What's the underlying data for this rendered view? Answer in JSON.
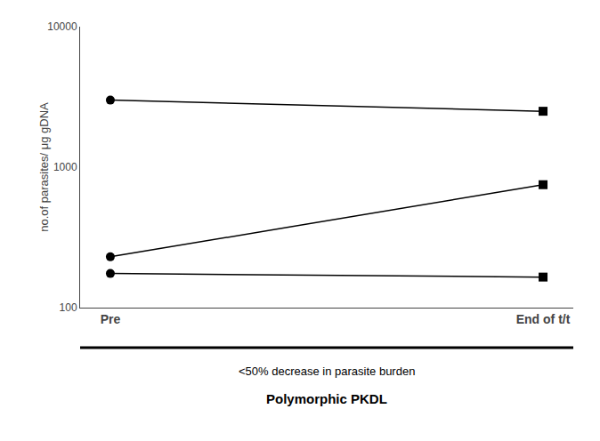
{
  "chart_data": {
    "type": "line",
    "categories": [
      "Pre",
      "End of t/t"
    ],
    "series": [
      {
        "values": [
          3000,
          2500
        ]
      },
      {
        "values": [
          230,
          750
        ]
      },
      {
        "values": [
          175,
          165
        ]
      }
    ],
    "color": "#000000",
    "ylabel": "no.of parasites/ μg gDNA",
    "log": "y",
    "ylim": [
      100,
      10000
    ],
    "yticks": [
      100,
      1000,
      10000
    ],
    "grid": false,
    "annotations": [
      "<50% decrease in parasite burden",
      "Polymorphic PKDL"
    ]
  }
}
